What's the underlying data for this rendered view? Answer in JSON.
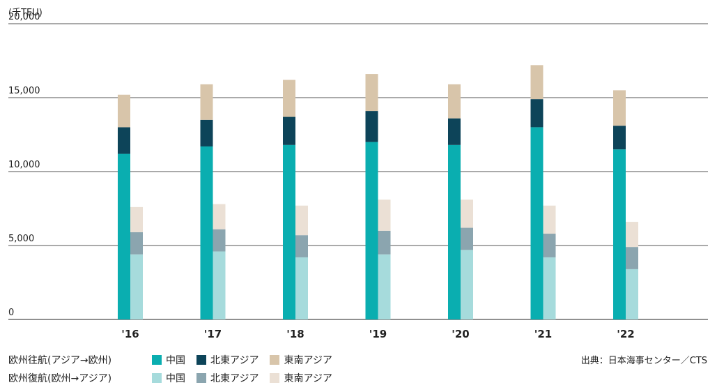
{
  "chart_data": {
    "type": "bar",
    "unit_label": "(千TEU)",
    "categories": [
      "'16",
      "'17",
      "'18",
      "'19",
      "'20",
      "'21",
      "'22"
    ],
    "y_ticks": [
      "20,000",
      "15,000",
      "10,000",
      "5,000",
      "0"
    ],
    "y_tick_values": [
      20000,
      15000,
      10000,
      5000,
      0
    ],
    "ylim": [
      0,
      20000
    ],
    "groups": [
      {
        "name": "欧州往航(アジア→欧州)",
        "series": [
          {
            "name": "中国",
            "color": "#0aaeb0",
            "values": [
              11200,
              11700,
              11800,
              12000,
              11800,
              13000,
              11500
            ]
          },
          {
            "name": "北東アジア",
            "color": "#0d4459",
            "values": [
              1800,
              1800,
              1900,
              2100,
              1800,
              1900,
              1600
            ]
          },
          {
            "name": "東南アジア",
            "color": "#d8c5aa",
            "values": [
              2200,
              2400,
              2500,
              2500,
              2300,
              2300,
              2400
            ]
          }
        ]
      },
      {
        "name": "欧州復航(欧州→アジア)",
        "series": [
          {
            "name": "中国",
            "color": "#a6dbdc",
            "values": [
              4400,
              4600,
              4200,
              4400,
              4700,
              4200,
              3400
            ]
          },
          {
            "name": "北東アジア",
            "color": "#8ba5af",
            "values": [
              1500,
              1500,
              1500,
              1600,
              1500,
              1600,
              1500
            ]
          },
          {
            "name": "東南アジア",
            "color": "#ebe0d5",
            "values": [
              1700,
              1700,
              2000,
              2100,
              1900,
              1900,
              1700
            ]
          }
        ]
      }
    ],
    "grid": true
  },
  "source": "出典：日本海事センター／CTS"
}
